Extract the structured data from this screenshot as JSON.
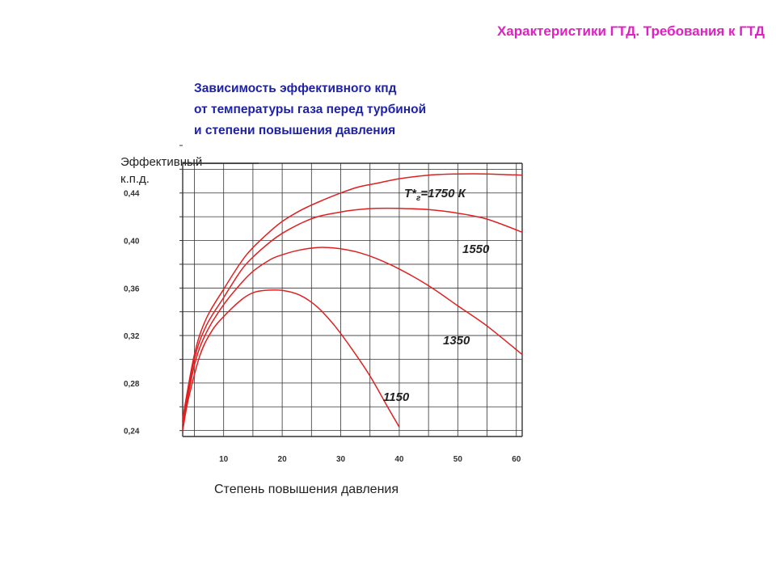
{
  "header": {
    "title": "Характеристики ГТД. Требования к ГТД"
  },
  "chart_data": {
    "type": "line",
    "title_lines": [
      "Зависимость эффективного кпд",
      "от температуры газа перед турбиной",
      "и степени повышения давления"
    ],
    "ylabel_lines": [
      "Эффективный",
      "к.п.д."
    ],
    "xlabel": "Степень повышения давления",
    "xlim": [
      3,
      61
    ],
    "ylim": [
      0.235,
      0.465
    ],
    "x_ticks": [
      10,
      20,
      30,
      40,
      50,
      60
    ],
    "x_tick_labels": [
      "10",
      "20",
      "30",
      "40",
      "50",
      "60"
    ],
    "y_ticks": [
      0.24,
      0.28,
      0.32,
      0.36,
      0.4,
      0.44
    ],
    "y_tick_labels": [
      "0,24",
      "0,28",
      "0,32",
      "0,36",
      "0,40",
      "0,44"
    ],
    "grid": true,
    "colors": {
      "lines": "#e02020",
      "grid": "#333333",
      "header": "#e020c0",
      "title": "#1e22a8"
    },
    "series": [
      {
        "name": "Т*г=1750 К",
        "label_parts": [
          "Т*",
          "г",
          "=1750 К"
        ],
        "x": [
          3,
          5,
          7,
          10,
          13,
          15,
          18,
          20,
          23,
          26,
          30,
          33,
          36,
          40,
          45,
          50,
          55,
          61
        ],
        "y": [
          0.25,
          0.304,
          0.334,
          0.359,
          0.382,
          0.394,
          0.408,
          0.416,
          0.425,
          0.432,
          0.44,
          0.445,
          0.448,
          0.452,
          0.455,
          0.456,
          0.456,
          0.455
        ]
      },
      {
        "name": "1550",
        "x": [
          3,
          5,
          7,
          10,
          13,
          15,
          18,
          20,
          23,
          26,
          30,
          33,
          36,
          40,
          45,
          50,
          55,
          61
        ],
        "y": [
          0.248,
          0.3,
          0.328,
          0.352,
          0.375,
          0.386,
          0.399,
          0.406,
          0.414,
          0.42,
          0.424,
          0.426,
          0.427,
          0.427,
          0.426,
          0.423,
          0.418,
          0.407
        ]
      },
      {
        "name": "1350",
        "x": [
          3,
          5,
          7,
          10,
          13,
          15,
          18,
          20,
          23,
          26,
          28,
          30,
          33,
          36,
          40,
          45,
          50,
          55,
          61
        ],
        "y": [
          0.245,
          0.295,
          0.322,
          0.346,
          0.364,
          0.374,
          0.384,
          0.388,
          0.392,
          0.394,
          0.394,
          0.393,
          0.39,
          0.385,
          0.376,
          0.362,
          0.345,
          0.328,
          0.304
        ]
      },
      {
        "name": "1150",
        "x": [
          3,
          4,
          6,
          8,
          10,
          13,
          15,
          17,
          20,
          23,
          26,
          29,
          32,
          35,
          38,
          40
        ],
        "y": [
          0.24,
          0.267,
          0.304,
          0.324,
          0.336,
          0.35,
          0.356,
          0.358,
          0.358,
          0.354,
          0.344,
          0.328,
          0.308,
          0.286,
          0.26,
          0.243
        ]
      }
    ]
  }
}
